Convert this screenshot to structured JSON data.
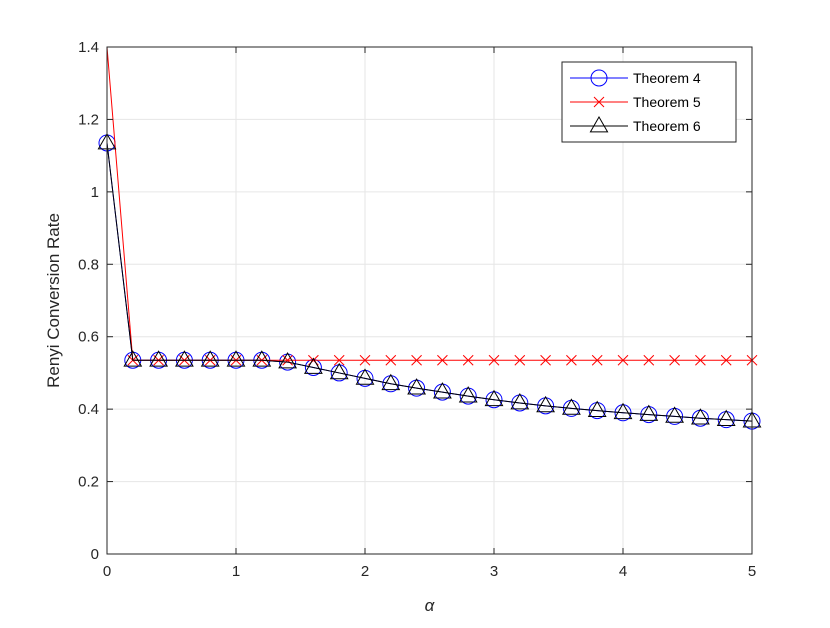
{
  "chart_data": {
    "type": "line",
    "title": "",
    "xlabel": "α",
    "ylabel": "Renyi Conversion Rate",
    "xlim": [
      0,
      5
    ],
    "ylim": [
      0,
      1.4
    ],
    "xticks": [
      0,
      1,
      2,
      3,
      4,
      5
    ],
    "xtick_labels": [
      "0",
      "1",
      "2",
      "3",
      "4",
      "5"
    ],
    "yticks": [
      0,
      0.2,
      0.4,
      0.6,
      0.8,
      1,
      1.2,
      1.4
    ],
    "ytick_labels": [
      "0",
      "0.2",
      "0.4",
      "0.6",
      "0.8",
      "1",
      "1.2",
      "1.4"
    ],
    "grid": true,
    "legend_position": "top-right",
    "x": [
      0,
      0.2,
      0.4,
      0.6,
      0.8,
      1.0,
      1.2,
      1.4,
      1.6,
      1.8,
      2.0,
      2.2,
      2.4,
      2.6,
      2.8,
      3.0,
      3.2,
      3.4,
      3.6,
      3.8,
      4.0,
      4.2,
      4.4,
      4.6,
      4.8,
      5.0
    ],
    "series": [
      {
        "name": "Theorem 4",
        "color": "#0000ff",
        "marker": "circle",
        "values": [
          1.135,
          0.535,
          0.535,
          0.535,
          0.535,
          0.535,
          0.535,
          0.53,
          0.515,
          0.5,
          0.485,
          0.47,
          0.458,
          0.447,
          0.436,
          0.426,
          0.417,
          0.409,
          0.402,
          0.396,
          0.39,
          0.385,
          0.38,
          0.375,
          0.371,
          0.367
        ]
      },
      {
        "name": "Theorem 5",
        "color": "#ff0000",
        "marker": "x",
        "values": [
          1.4,
          0.535,
          0.535,
          0.535,
          0.535,
          0.535,
          0.535,
          0.535,
          0.535,
          0.535,
          0.535,
          0.535,
          0.535,
          0.535,
          0.535,
          0.535,
          0.535,
          0.535,
          0.535,
          0.535,
          0.535,
          0.535,
          0.535,
          0.535,
          0.535,
          0.535
        ]
      },
      {
        "name": "Theorem 6",
        "color": "#000000",
        "marker": "triangle",
        "values": [
          1.135,
          0.535,
          0.535,
          0.535,
          0.535,
          0.535,
          0.535,
          0.53,
          0.515,
          0.5,
          0.485,
          0.47,
          0.458,
          0.447,
          0.436,
          0.426,
          0.417,
          0.409,
          0.402,
          0.396,
          0.39,
          0.385,
          0.38,
          0.375,
          0.371,
          0.367
        ]
      }
    ]
  }
}
